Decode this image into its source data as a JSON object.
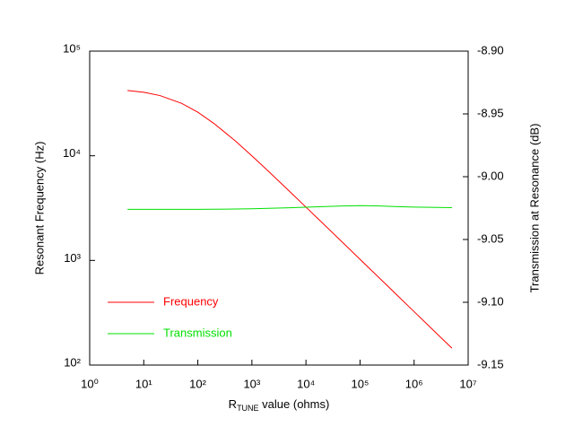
{
  "chart_data": {
    "type": "line",
    "x_label_parts": [
      "R",
      "TUNE",
      " value (ohms)"
    ],
    "y_label": "Resonant Frequency (Hz)",
    "y2_label": "Transmission at Resonance (dB)",
    "x": [
      5,
      10,
      20,
      50,
      100,
      200,
      500,
      1000,
      2000,
      5000,
      10000,
      20000,
      50000,
      100000,
      200000,
      500000,
      1000000,
      2000000,
      5000000
    ],
    "series": [
      {
        "name": "Frequency",
        "color": "#ff0000",
        "values": [
          42100,
          40400,
          37600,
          31700,
          26100,
          20300,
          13800,
          9980,
          7150,
          4560,
          3230,
          2290,
          1450,
          1025,
          725,
          458,
          324,
          229,
          145
        ]
      },
      {
        "name": "Transmission",
        "color": "#00e000",
        "axis": "y2",
        "values": [
          -9.026,
          -9.026,
          -9.026,
          -9.026,
          -9.026,
          -9.0259,
          -9.0257,
          -9.0255,
          -9.0252,
          -9.0247,
          -9.0243,
          -9.0238,
          -9.0233,
          -9.023,
          -9.0232,
          -9.0238,
          -9.0242,
          -9.0244,
          -9.0246
        ]
      }
    ],
    "xlog": true,
    "ylog": true,
    "xlim": [
      1,
      10000000
    ],
    "ylim": [
      100,
      100000
    ],
    "y2lim": [
      -9.15,
      -8.9
    ],
    "xticks": [
      {
        "value": 1,
        "label": "10⁰"
      },
      {
        "value": 10,
        "label": "10¹"
      },
      {
        "value": 100,
        "label": "10²"
      },
      {
        "value": 1000,
        "label": "10³"
      },
      {
        "value": 10000,
        "label": "10⁴"
      },
      {
        "value": 100000,
        "label": "10⁵"
      },
      {
        "value": 1000000,
        "label": "10⁶"
      },
      {
        "value": 10000000,
        "label": "10⁷"
      }
    ],
    "yticks": [
      {
        "value": 100,
        "label": "10²"
      },
      {
        "value": 1000,
        "label": "10³"
      },
      {
        "value": 10000,
        "label": "10⁴"
      },
      {
        "value": 100000,
        "label": "10⁵"
      }
    ],
    "y2ticks": [
      {
        "value": -9.15,
        "label": "-9.15"
      },
      {
        "value": -9.1,
        "label": "-9.10"
      },
      {
        "value": -9.05,
        "label": "-9.05"
      },
      {
        "value": -9,
        "label": "-9.00"
      },
      {
        "value": -8.95,
        "label": "-8.95"
      },
      {
        "value": -8.9,
        "label": "-8.90"
      }
    ],
    "legend": "lower left"
  }
}
